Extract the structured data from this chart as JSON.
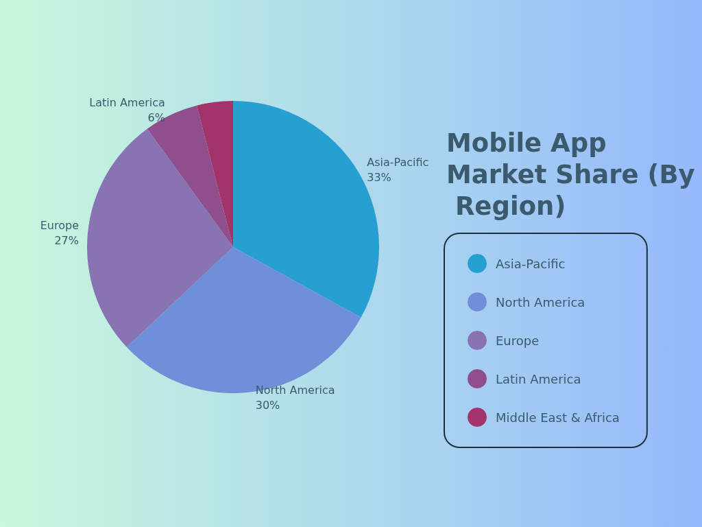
{
  "chart_data": {
    "type": "pie",
    "title": "Mobile App Market Share (By Region)",
    "categories": [
      "Asia-Pacific",
      "North America",
      "Europe",
      "Latin America",
      "Middle East & Africa"
    ],
    "values": [
      33,
      30,
      27,
      6,
      4
    ],
    "colors": [
      "#289fd3",
      "#6f8fd8",
      "#8873b3",
      "#8f4f8c",
      "#a3336b"
    ],
    "value_labels": [
      "33%",
      "30%",
      "27%",
      "6%",
      null
    ],
    "legend": "right"
  }
}
